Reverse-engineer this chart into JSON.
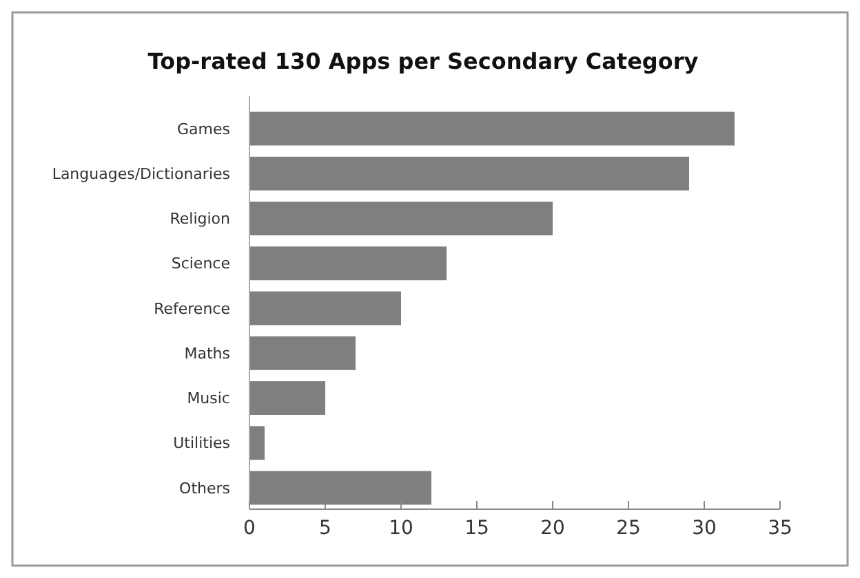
{
  "chart_data": {
    "type": "bar",
    "orientation": "horizontal",
    "title": "Top-rated 130 Apps per Secondary Category",
    "categories": [
      "Games",
      "Languages/Dictionaries",
      "Religion",
      "Science",
      "Reference",
      "Maths",
      "Music",
      "Utilities",
      "Others"
    ],
    "values": [
      32,
      29,
      20,
      13,
      10,
      7,
      5,
      1,
      12
    ],
    "color": "#7f7f7f",
    "xlim": [
      0,
      35
    ],
    "xticks": [
      0,
      5,
      10,
      15,
      20,
      25,
      30,
      35
    ]
  }
}
